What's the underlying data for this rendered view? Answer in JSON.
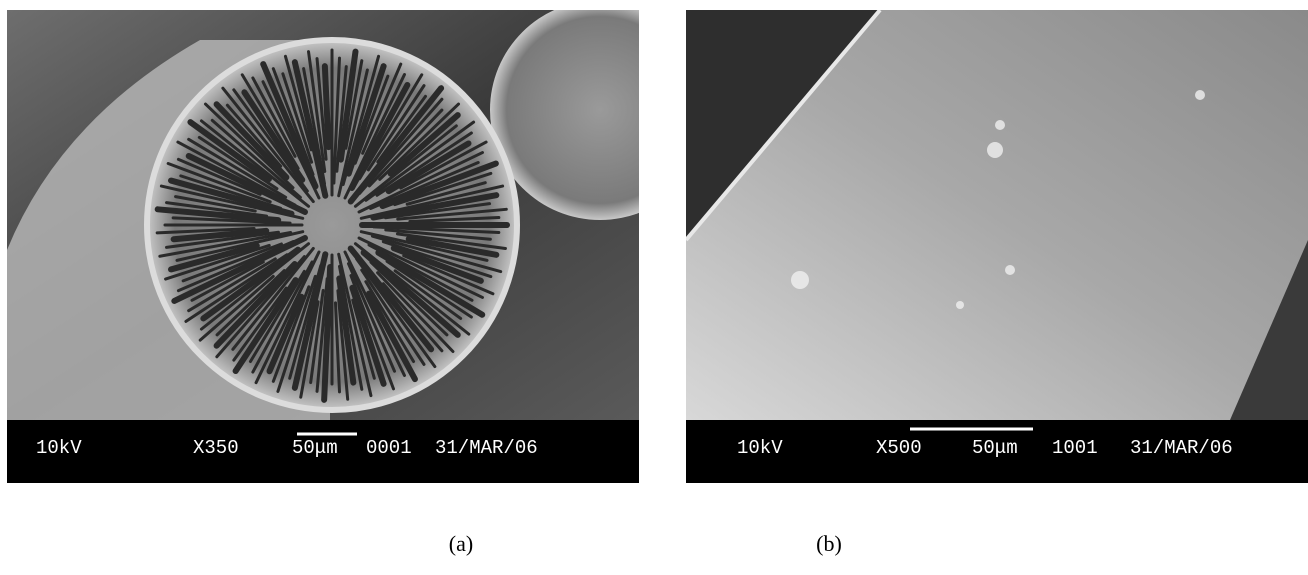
{
  "panels": [
    {
      "info_bar": {
        "voltage": "10kV",
        "magnification": "X350",
        "scale": "50μm",
        "number": "0001",
        "date": "31/MAR/06"
      },
      "caption": "(a)"
    },
    {
      "info_bar": {
        "voltage": "10kV",
        "magnification": "X500",
        "scale": "50μm",
        "number": "1001",
        "date": "31/MAR/06"
      },
      "caption": "(b)"
    }
  ]
}
